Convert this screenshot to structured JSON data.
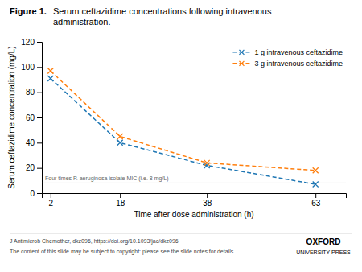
{
  "chart_data": {
    "type": "line",
    "title": "Figure 1.",
    "subtitle": "Serum ceftazidime concentrations following intravenous\nadministration.",
    "x_label": "Time after dose administration (h)",
    "y_label": "Serum ceftazidime concentration (mg/L)",
    "x": [
      2,
      18,
      38,
      63
    ],
    "xlim": [
      0,
      70
    ],
    "xticks": [
      2,
      18,
      38,
      63
    ],
    "ylim": [
      0,
      120
    ],
    "yticks": [
      0,
      20,
      40,
      60,
      80,
      100,
      120
    ],
    "series": [
      {
        "name": "1 g intravenous ceftazidime",
        "values": [
          91,
          40,
          22,
          7
        ],
        "marker": "x",
        "line_style": "dashed"
      },
      {
        "name": "3 g intravenous ceftazidime",
        "values": [
          97,
          45,
          24,
          18
        ],
        "marker": "x",
        "line_style": "dashed"
      }
    ],
    "reference_line": {
      "y": 8,
      "label": "Four times P. aeruginosa isolate MIC (i.e. 8 mg/L)",
      "color": "#aaaaaa"
    },
    "footnotes": [
      "J Antimicrob Chemother, dkz096, https://doi.org/10.1093/jac/dkz096",
      "The content of this slide may be subject to copyright: please see the slide notes for details."
    ],
    "publisher": [
      "OXFORD",
      "UNIVERSITY PRESS"
    ],
    "legend": "upper right",
    "grid": false
  }
}
